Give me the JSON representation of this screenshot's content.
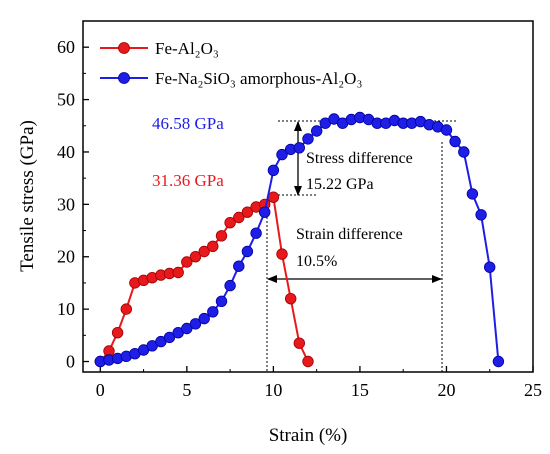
{
  "chart_data": {
    "type": "line",
    "xlabel": "Strain (%)",
    "ylabel": "Tensile stress (GPa)",
    "xlim": [
      -1,
      25
    ],
    "ylim": [
      -2,
      65
    ],
    "xticks": [
      0,
      5,
      10,
      15,
      20,
      25
    ],
    "yticks": [
      0,
      10,
      20,
      30,
      40,
      50,
      60
    ],
    "legend": "top-left",
    "grid": false,
    "series": [
      {
        "name": "Fe-Al₂O₃",
        "color": "#e8191c",
        "x": [
          0,
          0.5,
          1,
          1.5,
          2,
          2.5,
          3,
          3.5,
          4,
          4.5,
          5,
          5.5,
          6,
          6.5,
          7,
          7.5,
          8,
          8.5,
          9,
          9.5,
          10,
          10.5,
          11,
          11.5,
          12
        ],
        "y": [
          0,
          2,
          5.5,
          10,
          15,
          15.5,
          16,
          16.5,
          16.8,
          17,
          19,
          20,
          21,
          22,
          24,
          26.5,
          27.5,
          28.5,
          29.5,
          30,
          31.36,
          20.5,
          12,
          3.5,
          0
        ]
      },
      {
        "name": "Fe-Na₂SiO₃ amorphous-Al₂O₃",
        "color": "#1f1ee6",
        "x": [
          0,
          0.5,
          1,
          1.5,
          2,
          2.5,
          3,
          3.5,
          4,
          4.5,
          5,
          5.5,
          6,
          6.5,
          7,
          7.5,
          8,
          8.5,
          9,
          9.5,
          10,
          10.5,
          11,
          11.5,
          12,
          12.5,
          13,
          13.5,
          14,
          14.5,
          15,
          15.5,
          16,
          16.5,
          17,
          17.5,
          18,
          18.5,
          19,
          19.5,
          20,
          20.5,
          21,
          21.5,
          22,
          22.5,
          23
        ],
        "y": [
          0,
          0.3,
          0.6,
          1,
          1.5,
          2.2,
          3,
          3.8,
          4.6,
          5.5,
          6.3,
          7.2,
          8.2,
          9.5,
          11.5,
          14.5,
          18.2,
          21,
          24.5,
          28.5,
          36.5,
          39.5,
          40.5,
          40.8,
          42.5,
          44,
          45.5,
          46.3,
          45.5,
          46.2,
          46.58,
          46.2,
          45.5,
          45.5,
          46,
          45.5,
          45.5,
          45.8,
          45.2,
          44.8,
          44.2,
          42,
          40,
          32,
          28,
          18,
          0
        ]
      }
    ],
    "annotations": {
      "fe_peak": "31.36 GPa",
      "na_peak": "46.58 GPa",
      "stress_difference_label": "Stress difference",
      "stress_difference_value": "15.22 GPa",
      "strain_difference_label": "Strain difference",
      "strain_difference_value": "10.5%"
    }
  }
}
